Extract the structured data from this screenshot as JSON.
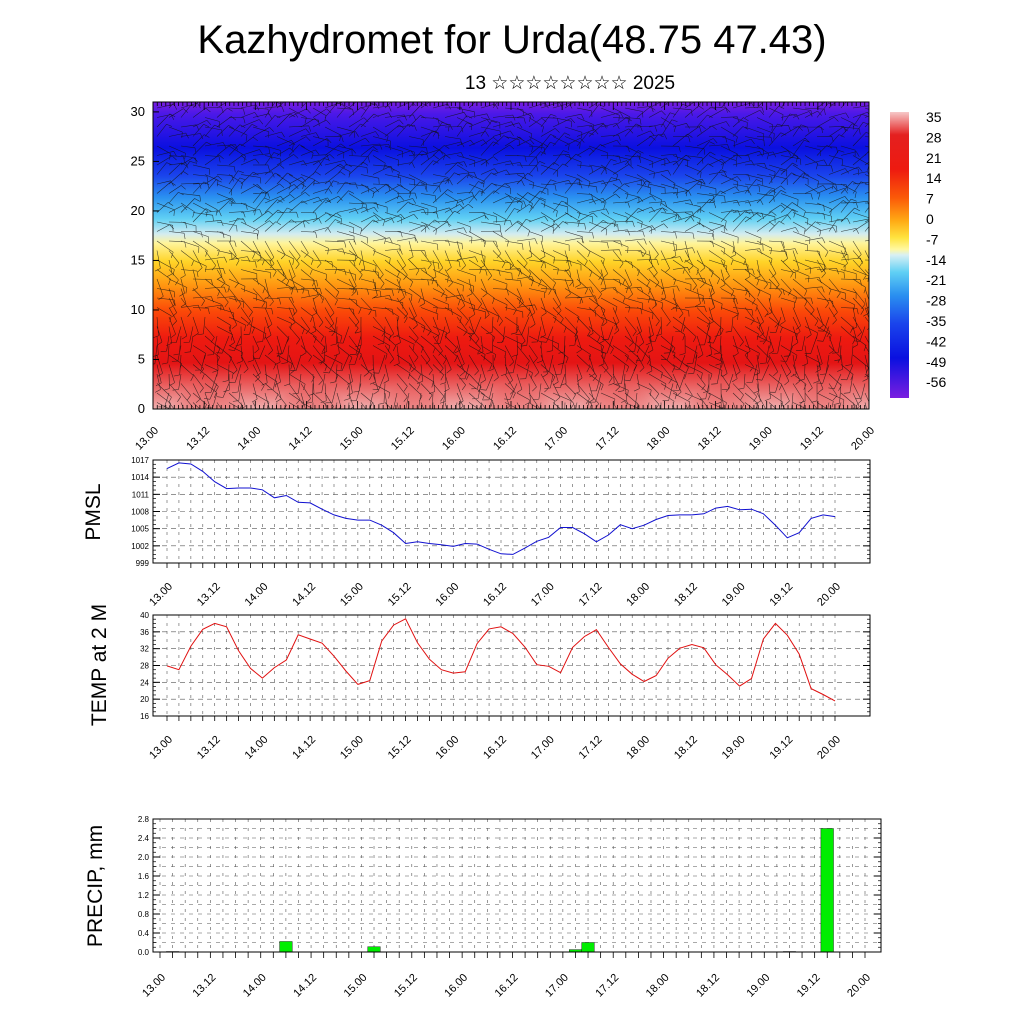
{
  "header": {
    "title": "Kazhydromet for Urda(48.75 47.43)",
    "subtitle": "13 ☆☆☆☆☆☆☆☆ 2025"
  },
  "colors": {
    "pmsl_line": "#1010d0",
    "temp_line": "#e01010",
    "precip_bar": "#00ee00"
  },
  "chart_data": [
    {
      "type": "heatmap",
      "title": "",
      "x_tick_labels": [
        "13.00",
        "13.12",
        "14.00",
        "14.12",
        "15.00",
        "15.12",
        "16.00",
        "16.12",
        "17.00",
        "17.12",
        "18.00",
        "18.12",
        "19.00",
        "19.12",
        "20.00"
      ],
      "y_tick_labels": [
        "0",
        "5",
        "10",
        "15",
        "20",
        "25",
        "30"
      ],
      "ylim": [
        0,
        31
      ],
      "colorbar_labels": [
        "35",
        "28",
        "21",
        "14",
        "7",
        "0",
        "-7",
        "-14",
        "-21",
        "-28",
        "-35",
        "-42",
        "-49",
        "-56"
      ],
      "colorbar_range": [
        -60,
        38
      ],
      "overlay": "wind barbs"
    },
    {
      "type": "line",
      "ylabel": "PMSL",
      "x_tick_labels": [
        "13.00",
        "13.12",
        "14.00",
        "14.12",
        "15.00",
        "15.12",
        "16.00",
        "16.12",
        "17.00",
        "17.12",
        "18.00",
        "18.12",
        "19.00",
        "19.12",
        "20.00"
      ],
      "y_tick_labels": [
        "999",
        "1002",
        "1005",
        "1008",
        "1011",
        "1014",
        "1017"
      ],
      "ylim": [
        999,
        1017
      ],
      "values": [
        1015.5,
        1016.5,
        1016.3,
        1015.0,
        1013.2,
        1012.0,
        1012.1,
        1012.1,
        1011.8,
        1010.4,
        1010.8,
        1009.6,
        1009.5,
        1008.4,
        1007.4,
        1006.8,
        1006.5,
        1006.5,
        1005.6,
        1004.3,
        1002.4,
        1002.7,
        1002.4,
        1002.2,
        1001.9,
        1002.4,
        1002.3,
        1001.4,
        1000.6,
        1000.5,
        1001.6,
        1002.8,
        1003.5,
        1005.2,
        1005.2,
        1004.1,
        1002.7,
        1003.9,
        1005.7,
        1005.0,
        1005.6,
        1006.6,
        1007.3,
        1007.4,
        1007.4,
        1007.6,
        1008.6,
        1008.9,
        1008.3,
        1008.4,
        1007.6,
        1005.6,
        1003.4,
        1004.3,
        1006.8,
        1007.4,
        1007.1
      ]
    },
    {
      "type": "line",
      "ylabel": "TEMP at 2 M",
      "x_tick_labels": [
        "13.00",
        "13.12",
        "14.00",
        "14.12",
        "15.00",
        "15.12",
        "16.00",
        "16.12",
        "17.00",
        "17.12",
        "18.00",
        "18.12",
        "19.00",
        "19.12",
        "20.00"
      ],
      "y_tick_labels": [
        "16",
        "20",
        "24",
        "28",
        "32",
        "36",
        "40"
      ],
      "ylim": [
        16,
        40
      ],
      "values": [
        27.9,
        27.0,
        32.6,
        36.6,
        38.0,
        37.2,
        31.5,
        27.3,
        25.0,
        27.5,
        29.3,
        35.3,
        34.3,
        33.3,
        30.2,
        26.7,
        23.5,
        24.4,
        33.8,
        37.6,
        39.1,
        33.4,
        29.5,
        27.0,
        26.2,
        26.5,
        33.2,
        36.7,
        37.2,
        35.6,
        32.4,
        28.2,
        27.8,
        26.3,
        32.3,
        34.9,
        36.5,
        32.3,
        28.4,
        25.9,
        24.2,
        25.6,
        29.7,
        32.1,
        33.0,
        32.2,
        28.2,
        25.8,
        23.1,
        24.9,
        34.3,
        38.0,
        35.2,
        30.7,
        22.5,
        21.1,
        19.6
      ]
    },
    {
      "type": "bar",
      "ylabel": "PRECIP, mm",
      "x_tick_labels": [
        "13.00",
        "13.12",
        "14.00",
        "14.12",
        "15.00",
        "15.12",
        "16.00",
        "16.12",
        "17.00",
        "17.12",
        "18.00",
        "18.12",
        "19.00",
        "19.12",
        "20.00"
      ],
      "y_tick_labels": [
        "0.0",
        "0.4",
        "0.8",
        "1.2",
        "1.6",
        "2.0",
        "2.4",
        "2.8"
      ],
      "ylim": [
        0,
        2.8
      ],
      "bars": [
        {
          "x": 13.125,
          "value": 0.01
        },
        {
          "x": 14.25,
          "value": 0.22
        },
        {
          "x": 15.125,
          "value": 0.11
        },
        {
          "x": 17.125,
          "value": 0.05
        },
        {
          "x": 17.25,
          "value": 0.2
        },
        {
          "x": 19.25,
          "value": 0.01
        },
        {
          "x": 19.625,
          "value": 2.6
        }
      ]
    }
  ]
}
